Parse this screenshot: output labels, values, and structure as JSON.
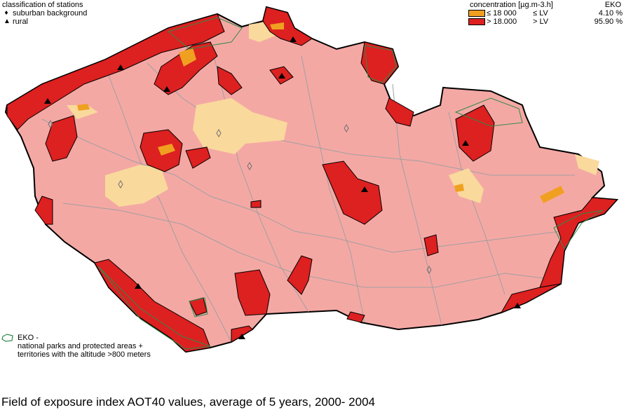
{
  "stations_legend": {
    "title": "classification of stations",
    "items": [
      {
        "symbol": "diamond-icon",
        "label": "suburban background"
      },
      {
        "symbol": "triangle-icon",
        "label": "rural"
      }
    ]
  },
  "concentration_legend": {
    "header": "concentration [µg.m-3.h]",
    "eko_header": "EKO",
    "rows": [
      {
        "color": "#f0a020",
        "threshold": "≤ 18 000",
        "lv": "≤ LV",
        "eko": "4.10 %"
      },
      {
        "color": "#dd2020",
        "threshold": "> 18.000",
        "lv": "> LV",
        "eko": "95.90 %"
      }
    ]
  },
  "eko_legend": {
    "title": "EKO -",
    "line1": "national parks and protected areas +",
    "line2": "territories with the altitude >800 meters"
  },
  "map": {
    "colors": {
      "background_class": "#f4a8a4",
      "light_class": "#f9d99c",
      "medium_class": "#f0a020",
      "high_class": "#dd2020",
      "outline": "#000000",
      "district_lines": "#a0a0a0",
      "eko_outline": "#2f8a4a"
    }
  },
  "caption": "Field of exposure index AOT40 values, average of 5 years, 2000- 2004"
}
